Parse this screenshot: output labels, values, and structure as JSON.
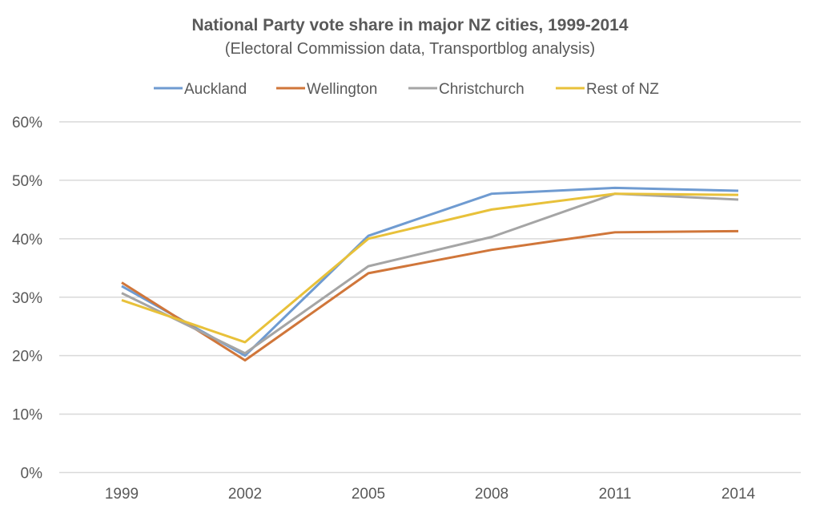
{
  "chart_data": {
    "type": "line",
    "title": "National Party vote share in major NZ cities, 1999-2014",
    "subtitle": "(Electoral Commission data, Transportblog analysis)",
    "xlabel": "",
    "ylabel": "",
    "categories": [
      "1999",
      "2002",
      "2005",
      "2008",
      "2011",
      "2014"
    ],
    "y_ticks": [
      "0%",
      "10%",
      "20%",
      "30%",
      "40%",
      "50%",
      "60%"
    ],
    "ylim": [
      0,
      60
    ],
    "y_unit": "%",
    "grid": "horizontal",
    "legend_position": "top",
    "series": [
      {
        "name": "Auckland",
        "color": "#6f9bd1",
        "values": [
          31.9,
          20.0,
          40.5,
          47.7,
          48.7,
          48.2
        ]
      },
      {
        "name": "Wellington",
        "color": "#d0763a",
        "values": [
          32.5,
          19.2,
          34.1,
          38.1,
          41.1,
          41.3
        ]
      },
      {
        "name": "Christchurch",
        "color": "#a5a5a5",
        "values": [
          30.7,
          20.4,
          35.3,
          40.3,
          47.7,
          46.7
        ]
      },
      {
        "name": "Rest of NZ",
        "color": "#e8c13a",
        "values": [
          29.5,
          22.3,
          40.0,
          45.0,
          47.7,
          47.5
        ]
      }
    ]
  }
}
